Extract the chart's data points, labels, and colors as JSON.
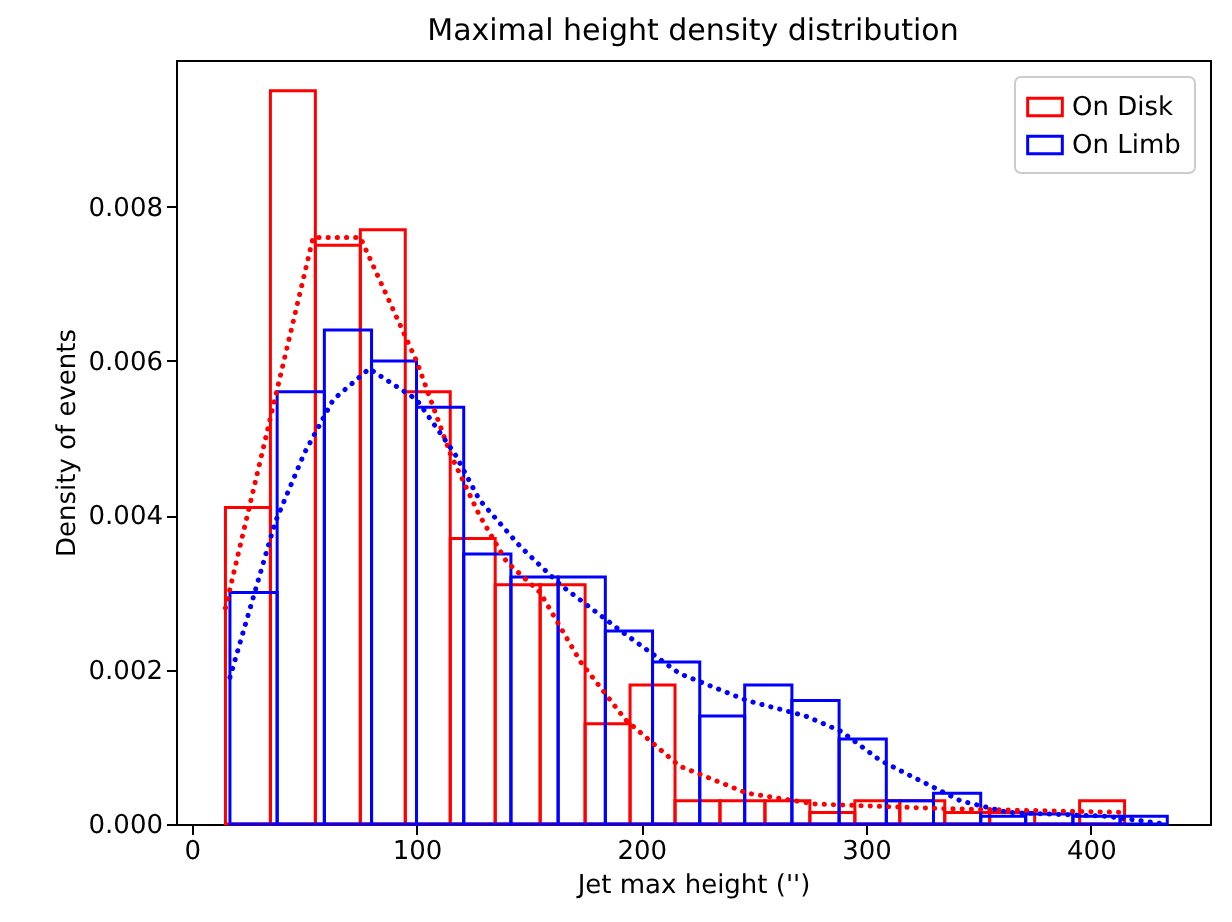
{
  "chart_data": {
    "type": "histogram",
    "title": "Maximal height density distribution",
    "xlabel": "Jet max height ('')",
    "ylabel": "Density of events",
    "xlim": [
      -7,
      453
    ],
    "xticks": [
      0,
      100,
      200,
      300,
      400
    ],
    "ylim": [
      0,
      0.0099
    ],
    "yticks": [
      {
        "value": 0,
        "label": "0.000"
      },
      {
        "value": 0.002,
        "label": "0.002"
      },
      {
        "value": 0.004,
        "label": "0.004"
      },
      {
        "value": 0.006,
        "label": "0.006"
      },
      {
        "value": 0.008,
        "label": "0.008"
      }
    ],
    "grid": false,
    "legend": "top right",
    "series": [
      {
        "name": "On Disk",
        "color": "#ff0000",
        "bins": [
          15,
          35,
          55,
          75,
          95,
          115,
          135,
          155,
          175,
          195,
          215,
          235,
          255,
          275,
          295,
          315,
          335,
          355,
          375,
          395,
          415
        ],
        "values": [
          0.0041,
          0.0095,
          0.0075,
          0.0077,
          0.0056,
          0.0037,
          0.0031,
          0.0031,
          0.0013,
          0.0018,
          0.0003,
          0.0003,
          0.0003,
          0.00015,
          0.0003,
          0.0003,
          0.00015,
          0.00015,
          0,
          0.0003
        ]
      },
      {
        "name": "On Limb",
        "color": "#0000ff",
        "bins": [
          17,
          38,
          59,
          80,
          100,
          121,
          142,
          163,
          184,
          205,
          226,
          246,
          267,
          288,
          309,
          330,
          351,
          371,
          392,
          413,
          434
        ],
        "values": [
          0.003,
          0.0056,
          0.0064,
          0.006,
          0.0054,
          0.0035,
          0.0032,
          0.0032,
          0.0025,
          0.0021,
          0.0014,
          0.0018,
          0.0016,
          0.0011,
          0.0003,
          0.0004,
          0.0001,
          0.00013,
          0.0001,
          0.0001
        ]
      },
      {
        "type": "line",
        "color": "#ff0000",
        "line_style": "dotted",
        "marker": "none",
        "x": [
          15,
          54,
          75,
          100,
          115,
          128,
          140,
          155,
          173,
          193,
          217,
          247,
          277,
          333,
          415
        ],
        "values": [
          0.0028,
          0.0076,
          0.0076,
          0.006,
          0.0048,
          0.004,
          0.0034,
          0.003,
          0.0021,
          0.00135,
          0.00075,
          0.0004,
          0.00026,
          0.0002,
          0.00015
        ]
      },
      {
        "type": "line",
        "color": "#0000ff",
        "line_style": "dotted",
        "marker": "none",
        "x": [
          17,
          28,
          37,
          50,
          63,
          79,
          100,
          117,
          128,
          146,
          164,
          191,
          217,
          247,
          273,
          289,
          306,
          318,
          342,
          363,
          407,
          433
        ],
        "values": [
          0.0019,
          0.003,
          0.0039,
          0.0048,
          0.0055,
          0.0059,
          0.0055,
          0.0048,
          0.0042,
          0.0036,
          0.0031,
          0.0025,
          0.00195,
          0.0016,
          0.0014,
          0.0012,
          0.00083,
          0.00065,
          0.0003,
          0.00015,
          0.0001,
          0
        ]
      }
    ]
  }
}
